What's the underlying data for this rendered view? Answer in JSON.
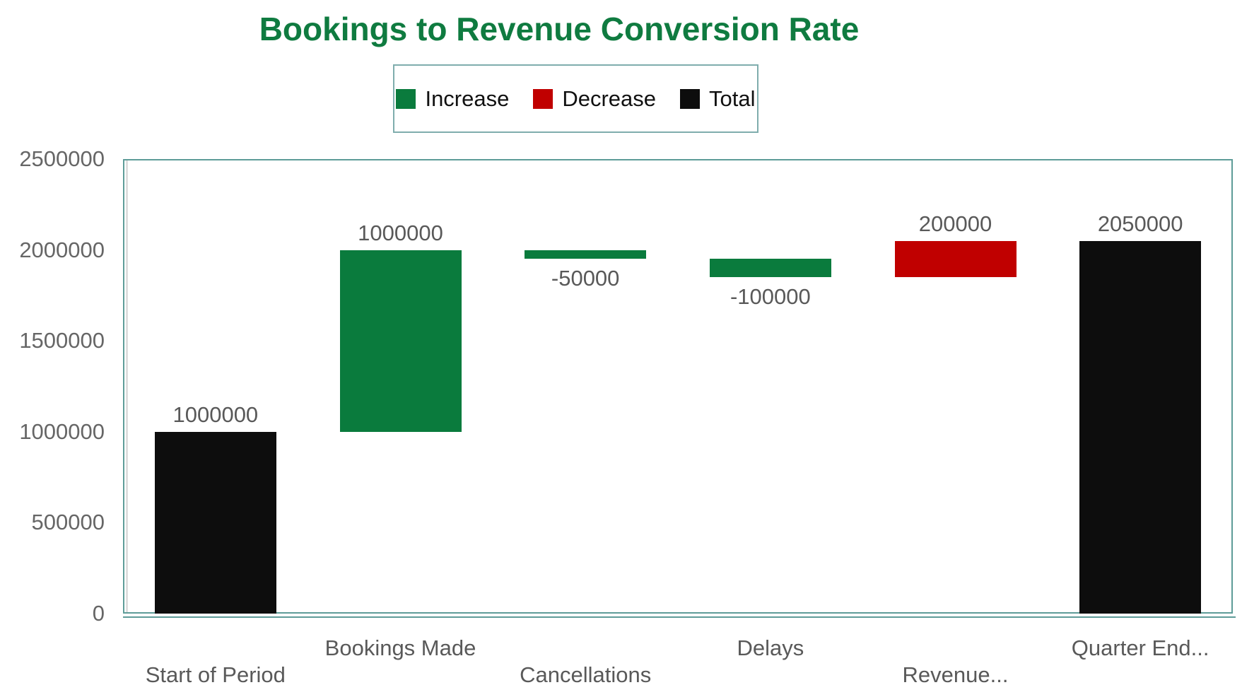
{
  "title": {
    "text": "Bookings to Revenue Conversion Rate",
    "color": "#0f7b40"
  },
  "legend": {
    "items": [
      {
        "label": "Increase",
        "color_key": "increase"
      },
      {
        "label": "Decrease",
        "color_key": "decrease"
      },
      {
        "label": "Total",
        "color_key": "total"
      }
    ]
  },
  "colors": {
    "increase": "#0a7b3d",
    "decrease": "#c00000",
    "total": "#0d0d0d",
    "plot_border": "#5e9c98",
    "legend_border": "#7fadad",
    "axis_line_gray": "#dedede",
    "data_label_gray": "#595959",
    "tick_gray": "#666666",
    "xlabel_gray": "#595959",
    "legend_text": "#111111"
  },
  "chart_data": {
    "type": "bar",
    "subtype": "waterfall",
    "title": "Bookings to Revenue Conversion Rate",
    "xlabel": "",
    "ylabel": "",
    "ylim": [
      0,
      2500000
    ],
    "grid": false,
    "legend_position": "top",
    "categories": [
      "Start of Period",
      "Bookings Made",
      "Cancellations",
      "Delays",
      "Revenue...",
      "Quarter End..."
    ],
    "yticks": [
      {
        "value": 0,
        "label": "0"
      },
      {
        "value": 500000,
        "label": "500000"
      },
      {
        "value": 1000000,
        "label": "1000000"
      },
      {
        "value": 1500000,
        "label": "1500000"
      },
      {
        "value": 2000000,
        "label": "2000000"
      },
      {
        "value": 2500000,
        "label": "2500000"
      }
    ],
    "bars": [
      {
        "category": "Start of Period",
        "delta": 1000000,
        "base": 0,
        "end": 1000000,
        "role": "total",
        "color_key": "total",
        "data_label": "1000000",
        "label_position": "above"
      },
      {
        "category": "Bookings Made",
        "delta": 1000000,
        "base": 1000000,
        "end": 2000000,
        "role": "increase",
        "color_key": "increase",
        "data_label": "1000000",
        "label_position": "above"
      },
      {
        "category": "Cancellations",
        "delta": -50000,
        "base": 1950000,
        "end": 2000000,
        "role": "decrease",
        "color_key": "increase",
        "data_label": "-50000",
        "label_position": "below"
      },
      {
        "category": "Delays",
        "delta": -100000,
        "base": 1850000,
        "end": 1950000,
        "role": "decrease",
        "color_key": "increase",
        "data_label": "-100000",
        "label_position": "below"
      },
      {
        "category": "Revenue...",
        "delta": 200000,
        "base": 1850000,
        "end": 2050000,
        "role": "increase",
        "color_key": "decrease",
        "data_label": "200000",
        "label_position": "above"
      },
      {
        "category": "Quarter End...",
        "delta": 2050000,
        "base": 0,
        "end": 2050000,
        "role": "total",
        "color_key": "total",
        "data_label": "2050000",
        "label_position": "above"
      }
    ]
  }
}
